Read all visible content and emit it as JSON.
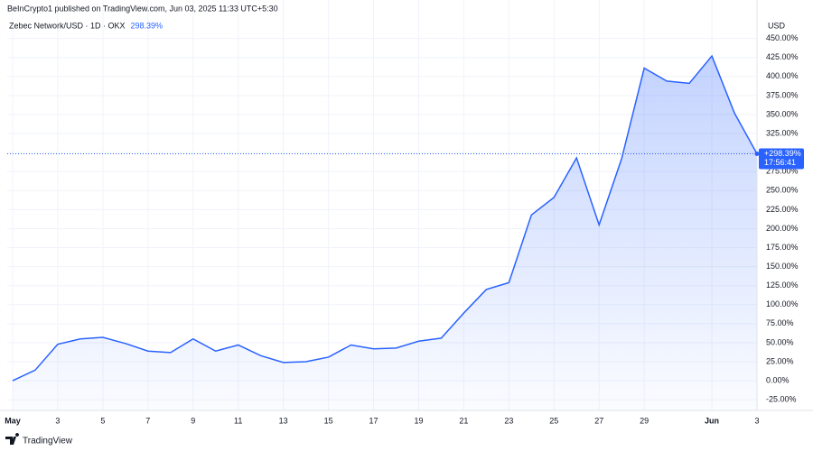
{
  "header": {
    "text": "BeInCrypto1 published on TradingView.com, Jun 03, 2025 11:33 UTC+5:30"
  },
  "chart_data": {
    "type": "area",
    "title": "Zebec Network/USD · 1D · OKX",
    "current_value_label": "298.39%",
    "price_tag": "+298.39%",
    "countdown": "17:56:41",
    "y_axis_label": "USD",
    "x": [
      1,
      2,
      3,
      4,
      5,
      6,
      7,
      8,
      9,
      10,
      11,
      12,
      13,
      14,
      15,
      16,
      17,
      18,
      19,
      20,
      21,
      22,
      23,
      24,
      25,
      26,
      27,
      28,
      29,
      30,
      31,
      32,
      33,
      34
    ],
    "values": [
      0,
      14,
      48,
      55,
      57,
      49,
      39,
      37,
      55,
      39,
      47,
      33,
      24,
      25,
      31,
      47,
      42,
      43,
      52,
      56,
      89,
      120,
      129,
      218,
      241,
      293,
      205,
      292,
      411,
      394,
      391,
      427,
      352,
      298.39
    ],
    "color": "#2962ff",
    "xlim": [
      0.76,
      34
    ],
    "ylim": [
      -39,
      465
    ],
    "xticks": [
      {
        "value": 1,
        "label": "May"
      },
      3,
      5,
      7,
      9,
      11,
      13,
      15,
      17,
      19,
      21,
      23,
      25,
      27,
      29,
      {
        "value": 32,
        "label": "Jun"
      },
      {
        "value": 34,
        "label": "3"
      }
    ],
    "yticks": [
      {
        "value": -25,
        "label": "-25.00%"
      },
      {
        "value": 0,
        "label": "0.00%"
      },
      {
        "value": 25,
        "label": "25.00%"
      },
      {
        "value": 50,
        "label": "50.00%"
      },
      {
        "value": 75,
        "label": "75.00%"
      },
      {
        "value": 100,
        "label": "100.00%"
      },
      {
        "value": 125,
        "label": "125.00%"
      },
      {
        "value": 150,
        "label": "150.00%"
      },
      {
        "value": 175,
        "label": "175.00%"
      },
      {
        "value": 200,
        "label": "200.00%"
      },
      {
        "value": 225,
        "label": "225.00%"
      },
      {
        "value": 250,
        "label": "250.00%"
      },
      {
        "value": 275,
        "label": "275.00%"
      },
      {
        "value": 300,
        "label": "300.00%"
      },
      {
        "value": 325,
        "label": "325.00%"
      },
      {
        "value": 350,
        "label": "350.00%"
      },
      {
        "value": 375,
        "label": "375.00%"
      },
      {
        "value": 400,
        "label": "400.00%"
      },
      {
        "value": 425,
        "label": "425.00%"
      },
      {
        "value": 450,
        "label": "450.00%"
      }
    ],
    "grid": true
  },
  "footer": {
    "brand": "TradingView"
  }
}
